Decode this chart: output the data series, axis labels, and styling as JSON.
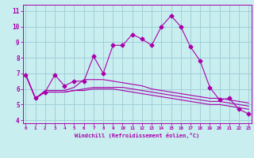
{
  "xlabel": "Windchill (Refroidissement éolien,°C)",
  "bg_color": "#c8eef0",
  "grid_color": "#a0d0d8",
  "line_color": "#aa00aa",
  "x_ticks": [
    0,
    1,
    2,
    3,
    4,
    5,
    6,
    7,
    8,
    9,
    10,
    11,
    12,
    13,
    14,
    15,
    16,
    17,
    18,
    19,
    20,
    21,
    22,
    23
  ],
  "y_ticks": [
    4,
    5,
    6,
    7,
    8,
    9,
    10,
    11
  ],
  "ylim": [
    3.8,
    11.4
  ],
  "xlim": [
    -0.3,
    23.3
  ],
  "series": [
    [
      6.9,
      5.4,
      5.8,
      6.9,
      6.2,
      6.5,
      6.5,
      8.1,
      7.0,
      8.8,
      8.8,
      9.5,
      9.2,
      8.8,
      10.0,
      10.7,
      10.0,
      8.7,
      7.8,
      6.1,
      5.3,
      5.4,
      4.7,
      4.4
    ],
    [
      6.9,
      5.4,
      5.9,
      5.9,
      5.9,
      6.1,
      6.6,
      6.6,
      6.6,
      6.5,
      6.4,
      6.3,
      6.2,
      6.0,
      5.9,
      5.8,
      5.7,
      5.6,
      5.5,
      5.4,
      5.4,
      5.3,
      5.2,
      5.1
    ],
    [
      6.9,
      5.4,
      5.8,
      5.8,
      5.8,
      5.9,
      6.0,
      6.1,
      6.1,
      6.1,
      6.1,
      6.0,
      5.9,
      5.8,
      5.7,
      5.6,
      5.5,
      5.4,
      5.3,
      5.2,
      5.2,
      5.1,
      5.0,
      4.9
    ],
    [
      6.9,
      5.4,
      5.8,
      5.8,
      5.8,
      5.9,
      5.9,
      6.0,
      6.0,
      6.0,
      5.9,
      5.8,
      5.7,
      5.6,
      5.5,
      5.4,
      5.3,
      5.2,
      5.1,
      5.0,
      5.0,
      4.9,
      4.8,
      4.7
    ]
  ]
}
